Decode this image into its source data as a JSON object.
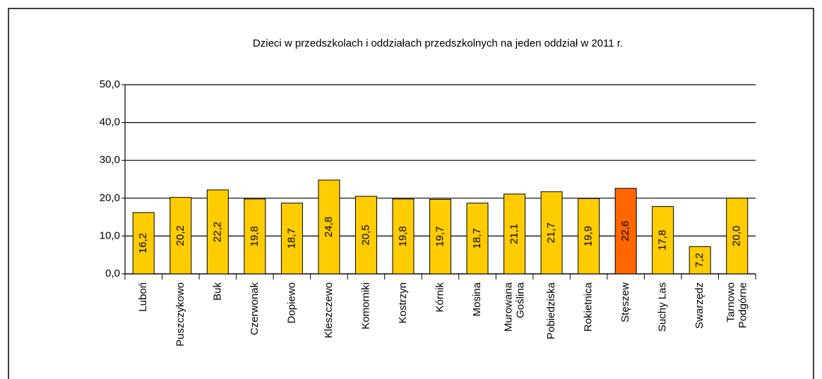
{
  "chart_data": {
    "type": "bar",
    "title": "Dzieci w  przedszkolach i oddziałach przedszkolnych na jeden oddział w  2011 r.",
    "categories": [
      "Luboń",
      "Puszczykowo",
      "Buk",
      "Czerwonak",
      "Dopiewo",
      "Kleszczewo",
      "Komorniki",
      "Kostrzyn",
      "Kórnik",
      "Mosina",
      "Murowana\nGoślina",
      "Pobiedziska",
      "Rokietnica",
      "Stęszew",
      "Suchy Las",
      "Swarzędz",
      "Tarnowo\nPodgórne"
    ],
    "values": [
      16.2,
      20.2,
      22.2,
      19.8,
      18.7,
      24.8,
      20.5,
      19.8,
      19.7,
      18.7,
      21.1,
      21.7,
      19.9,
      22.6,
      17.8,
      7.2,
      20.0
    ],
    "value_labels": [
      "16,2",
      "20,2",
      "22,2",
      "19,8",
      "18,7",
      "24,8",
      "20,5",
      "19,8",
      "19,7",
      "18,7",
      "21,1",
      "21,7",
      "19,9",
      "22,6",
      "17,8",
      "7,2",
      "20,0"
    ],
    "colors": [
      "#ffcc00",
      "#ffcc00",
      "#ffcc00",
      "#ffcc00",
      "#ffcc00",
      "#ffcc00",
      "#ffcc00",
      "#ffcc00",
      "#ffcc00",
      "#ffcc00",
      "#ffcc00",
      "#ffcc00",
      "#ffcc00",
      "#ff6600",
      "#ffcc00",
      "#ffcc00",
      "#ffcc00"
    ],
    "ylim": [
      0,
      50
    ],
    "yticks": [
      {
        "value": 0,
        "label": "0,0"
      },
      {
        "value": 10,
        "label": "10,0"
      },
      {
        "value": 20,
        "label": "20,0"
      },
      {
        "value": 30,
        "label": "30,0"
      },
      {
        "value": 40,
        "label": "40,0"
      },
      {
        "value": 50,
        "label": "50,0"
      }
    ],
    "grid": true
  }
}
